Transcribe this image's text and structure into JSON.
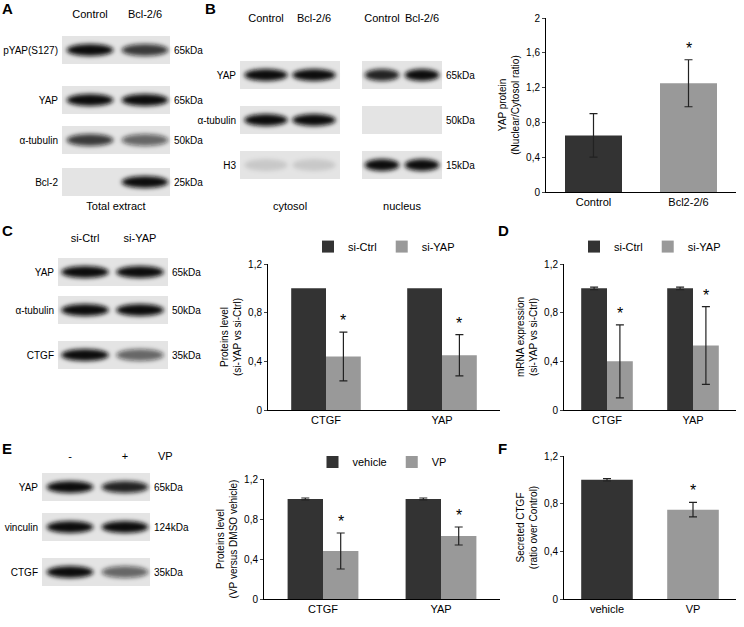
{
  "blots": [
    {
      "panel": "A",
      "lanes": [
        "Control",
        "Bcl-2/6"
      ],
      "rows": [
        {
          "label": "pYAP(S127)",
          "size": "65kDa"
        },
        {
          "label": "YAP",
          "size": "65kDa"
        },
        {
          "label": "α-tubulin",
          "size": "50kDa"
        },
        {
          "label": "Bcl-2",
          "size": "25kDa"
        }
      ],
      "caption": "Total extract"
    },
    {
      "panel": "B",
      "lanes": [
        "Control",
        "Bcl-2/6"
      ],
      "rows": [
        {
          "label": "YAP"
        },
        {
          "label": "α-tubulin"
        },
        {
          "label": "H3"
        }
      ],
      "caption": "cytosol"
    },
    {
      "lanes": [
        "Control",
        "Bcl-2/6"
      ],
      "rows": [
        {
          "size": "65kDa"
        },
        {
          "size": "50kDa"
        },
        {
          "size": "15kDa"
        }
      ],
      "caption": "nucleus"
    },
    {
      "panel": "C",
      "lanes": [
        "si-Ctrl",
        "si-YAP"
      ],
      "rows": [
        {
          "label": "YAP",
          "size": "65kDa"
        },
        {
          "label": "α-tubulin",
          "size": "50kDa"
        },
        {
          "label": "CTGF",
          "size": "35kDa"
        }
      ]
    },
    {
      "panel": "E",
      "lanes": [
        "-",
        "+"
      ],
      "treatment": "VP",
      "rows": [
        {
          "label": "YAP",
          "size": "65kDa"
        },
        {
          "label": "vinculin",
          "size": "124kDa"
        },
        {
          "label": "CTGF",
          "size": "35kDa"
        }
      ]
    }
  ],
  "chart_data": [
    {
      "type": "bar",
      "categories": [
        "Control",
        "Bcl2-2/6"
      ],
      "values": [
        0.65,
        1.25
      ],
      "errors": [
        0.25,
        0.27
      ],
      "colors": [
        "#333333",
        "#999999"
      ],
      "ylabel": [
        "YAP protein",
        "(Nuclear/Cytosol ratio)"
      ],
      "ylim": [
        0,
        2
      ],
      "yticks": [
        0,
        {
          "value": 0.4,
          "label": "0,4"
        },
        {
          "value": 0.8,
          "label": "0,8"
        },
        {
          "value": 1.2,
          "label": "1,2"
        },
        {
          "value": 1.6,
          "label": "1,6"
        },
        2
      ],
      "annotations": [
        {
          "category": "Bcl2-2/6",
          "text": "*"
        }
      ]
    },
    {
      "type": "bar",
      "categories": [
        "CTGF",
        "YAP"
      ],
      "series": [
        {
          "name": "si-Ctrl",
          "color": "#333333",
          "values": [
            1,
            1
          ]
        },
        {
          "name": "si-YAP",
          "color": "#999999",
          "values": [
            0.44,
            0.45
          ],
          "errors": [
            0.2,
            0.17
          ]
        }
      ],
      "ylabel": [
        "Proteins level",
        "(si-YAP vs si-Ctrl)"
      ],
      "ylim": [
        0,
        1.2
      ],
      "yticks": [
        0,
        {
          "value": 0.4,
          "label": "0,4"
        },
        {
          "value": 0.8,
          "label": "0,8"
        },
        {
          "value": 1.2,
          "label": "1,2"
        }
      ],
      "legend": "top",
      "annotations": [
        {
          "category": "CTGF",
          "series": "si-YAP",
          "text": "*"
        },
        {
          "category": "YAP",
          "series": "si-YAP",
          "text": "*"
        }
      ]
    },
    {
      "type": "bar",
      "panel": "D",
      "categories": [
        "CTGF",
        "YAP"
      ],
      "series": [
        {
          "name": "si-Ctrl",
          "color": "#333333",
          "values": [
            1,
            1
          ],
          "errors": [
            0.01,
            0.01
          ]
        },
        {
          "name": "si-YAP",
          "color": "#999999",
          "values": [
            0.4,
            0.53
          ],
          "errors": [
            0.3,
            0.32
          ]
        }
      ],
      "ylabel": [
        "mRNA expression",
        "(si-YAP vs si-Ctrl)"
      ],
      "ylim": [
        0,
        1.2
      ],
      "yticks": [
        0,
        {
          "value": 0.4,
          "label": "0,4"
        },
        {
          "value": 0.8,
          "label": "0,8"
        },
        {
          "value": 1.2,
          "label": "1,2"
        }
      ],
      "legend": "top",
      "annotations": [
        {
          "category": "CTGF",
          "series": "si-YAP",
          "text": "*"
        },
        {
          "category": "YAP",
          "series": "si-YAP",
          "text": "*"
        }
      ]
    },
    {
      "type": "bar",
      "categories": [
        "CTGF",
        "YAP"
      ],
      "series": [
        {
          "name": "vehicle",
          "color": "#333333",
          "values": [
            1,
            1
          ],
          "errors": [
            0.01,
            0.01
          ]
        },
        {
          "name": "VP",
          "color": "#999999",
          "values": [
            0.48,
            0.63
          ],
          "errors": [
            0.18,
            0.09
          ]
        }
      ],
      "ylabel": [
        "Proteins level",
        "(VP versus DMSO vehicle)"
      ],
      "ylim": [
        0,
        1.2
      ],
      "yticks": [
        0,
        {
          "value": 0.4,
          "label": "0,4"
        },
        {
          "value": 0.8,
          "label": "0,8"
        },
        {
          "value": 1.2,
          "label": "1,2"
        }
      ],
      "legend": "top",
      "annotations": [
        {
          "category": "CTGF",
          "series": "VP",
          "text": "*"
        },
        {
          "category": "YAP",
          "series": "VP",
          "text": "*"
        }
      ]
    },
    {
      "type": "bar",
      "panel": "F",
      "categories": [
        "vehicle",
        "VP"
      ],
      "values": [
        1,
        0.75
      ],
      "errors": [
        0.01,
        0.06
      ],
      "colors": [
        "#333333",
        "#999999"
      ],
      "ylabel": [
        "Secreted CTGF",
        "(ratio over Control)"
      ],
      "ylim": [
        0,
        1.2
      ],
      "yticks": [
        0,
        {
          "value": 0.4,
          "label": "0,4"
        },
        {
          "value": 0.8,
          "label": "0,8"
        },
        {
          "value": 1.2,
          "label": "1,2"
        }
      ],
      "annotations": [
        {
          "category": "VP",
          "text": "*"
        }
      ]
    }
  ]
}
